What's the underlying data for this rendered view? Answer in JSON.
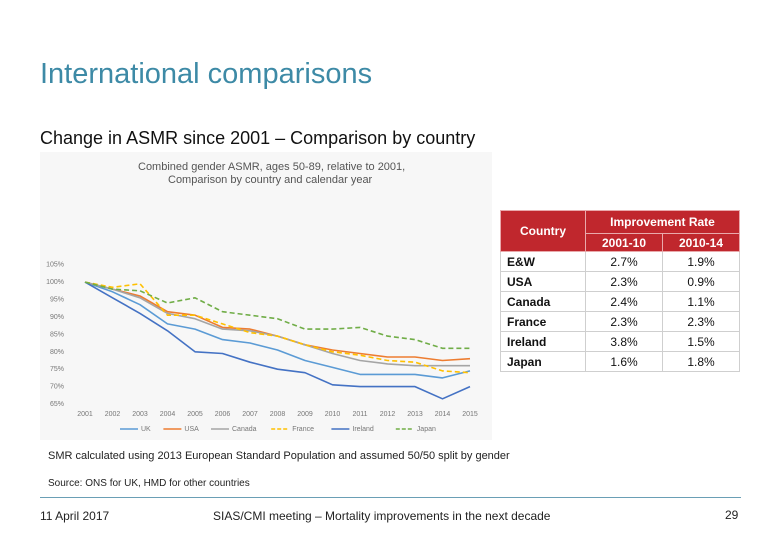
{
  "slide": {
    "title": "International comparisons",
    "subtitle": "Change in ASMR since 2001 – Comparison by country",
    "note": "SMR calculated using 2013 European Standard Population and assumed 50/50 split by gender",
    "source": "Source: ONS for UK, HMD for other countries",
    "footer_date": "11 April 2017",
    "footer_center": "SIAS/CMI meeting – Mortality improvements in the next decade",
    "page_number": "29"
  },
  "chart_data": {
    "type": "line",
    "title_line1": "Combined gender ASMR, ages 50-89, relative to 2001,",
    "title_line2": "Comparison by country and calendar year",
    "x": [
      "2001",
      "2002",
      "2003",
      "2004",
      "2005",
      "2006",
      "2007",
      "2008",
      "2009",
      "2010",
      "2011",
      "2012",
      "2013",
      "2014",
      "2015"
    ],
    "ylim": [
      65,
      125
    ],
    "yticks": [
      65,
      70,
      75,
      80,
      85,
      90,
      95,
      100,
      105
    ],
    "ytick_labels": [
      "65%",
      "70%",
      "75%",
      "80%",
      "85%",
      "90%",
      "95%",
      "100%",
      "105%"
    ],
    "legend_position": "bottom",
    "series": [
      {
        "name": "UK",
        "color": "#5b9bd5",
        "dash": "solid",
        "values": [
          100,
          97.2,
          93.5,
          88,
          86.5,
          83.5,
          82.5,
          80.5,
          77.5,
          75.5,
          73.5,
          73.5,
          73.5,
          72.5,
          74.5
        ]
      },
      {
        "name": "USA",
        "color": "#ed7d31",
        "dash": "solid",
        "values": [
          100,
          98,
          96,
          91.5,
          90.5,
          87,
          86.5,
          84.5,
          82,
          80.5,
          79.5,
          78.5,
          78.5,
          77.5,
          78
        ]
      },
      {
        "name": "Canada",
        "color": "#a5a5a5",
        "dash": "solid",
        "values": [
          100,
          98,
          95.5,
          91,
          89.5,
          86.5,
          86,
          84.5,
          82,
          79.5,
          77.5,
          76.5,
          76,
          76,
          76
        ]
      },
      {
        "name": "France",
        "color": "#ffc000",
        "dash": "dashed",
        "values": [
          100,
          98.5,
          99.5,
          90.5,
          90.5,
          88,
          85.5,
          84.5,
          82,
          80,
          79,
          77.5,
          77,
          74.5,
          74
        ]
      },
      {
        "name": "Ireland",
        "color": "#4472c4",
        "dash": "solid",
        "values": [
          100,
          95.5,
          91,
          86,
          80,
          79.5,
          77,
          75,
          74,
          70.5,
          70,
          70,
          70,
          66.5,
          70
        ]
      },
      {
        "name": "Japan",
        "color": "#70ad47",
        "dash": "dashed",
        "values": [
          100,
          98,
          97.5,
          94,
          95.5,
          91.5,
          90.5,
          89.5,
          86.5,
          86.5,
          87,
          84.5,
          83.5,
          81,
          81
        ]
      }
    ]
  },
  "table": {
    "header_country": "Country",
    "header_rate": "Improvement Rate",
    "header_period1": "2001-10",
    "header_period2": "2010-14",
    "rows": [
      {
        "country": "E&W",
        "p1": "2.7%",
        "p2": "1.9%"
      },
      {
        "country": "USA",
        "p1": "2.3%",
        "p2": "0.9%"
      },
      {
        "country": "Canada",
        "p1": "2.4%",
        "p2": "1.1%"
      },
      {
        "country": "France",
        "p1": "2.3%",
        "p2": "2.3%"
      },
      {
        "country": "Ireland",
        "p1": "3.8%",
        "p2": "1.5%"
      },
      {
        "country": "Japan",
        "p1": "1.6%",
        "p2": "1.8%"
      }
    ]
  }
}
